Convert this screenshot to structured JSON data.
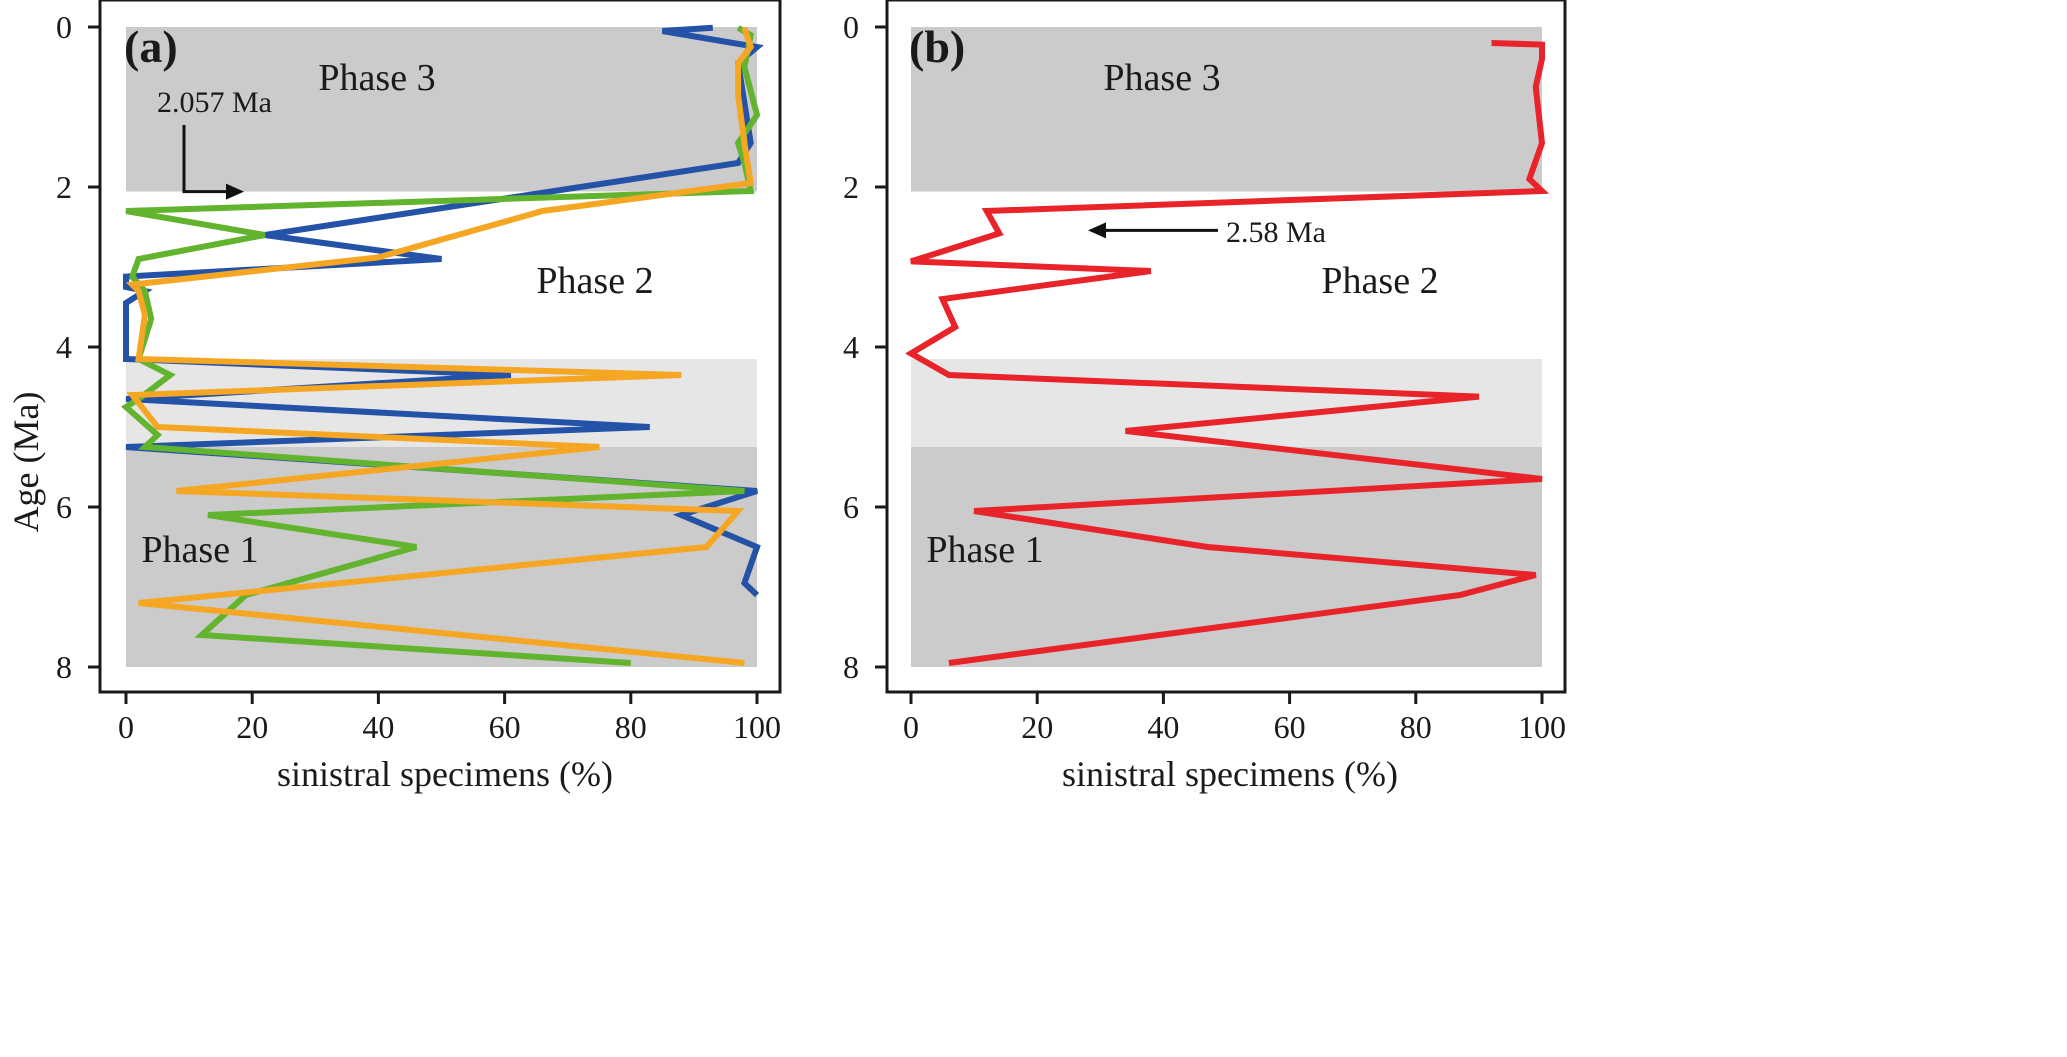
{
  "figure": {
    "ylabel": "Age (Ma)"
  },
  "chart_data": [
    {
      "type": "line",
      "panel": "(a)",
      "xlabel": "sinistral specimens (%)",
      "ylabel": "Age (Ma)",
      "xlim": [
        0,
        100
      ],
      "ylim": [
        8,
        0
      ],
      "x_ticks": [
        "0",
        "20",
        "40",
        "60",
        "80",
        "100"
      ],
      "y_ticks": [
        "0",
        "2",
        "4",
        "6",
        "8"
      ],
      "y_inverted": true,
      "bands": [
        {
          "name": "Phase 3",
          "from": 0,
          "to": 2.057,
          "color": "#cbcbcb",
          "label": "Phase 3"
        },
        {
          "name": "Phase 2",
          "from": 2.057,
          "to": 4.15,
          "color": "#ffffff",
          "label": "Phase 2"
        },
        {
          "name": "transition",
          "from": 4.15,
          "to": 5.25,
          "color": "#e6e6e6",
          "label": ""
        },
        {
          "name": "Phase 1",
          "from": 5.25,
          "to": 8.0,
          "color": "#cbcbcb",
          "label": "Phase 1"
        }
      ],
      "annotations": [
        {
          "text": "2.057 Ma",
          "age": 2.057,
          "arrow": "right"
        }
      ],
      "series": [
        {
          "name": "blue",
          "color": "#2352a6",
          "points": [
            [
              93,
              0.01
            ],
            [
              85,
              0.05
            ],
            [
              100,
              0.25
            ],
            [
              97,
              0.45
            ],
            [
              99,
              1.45
            ],
            [
              97,
              1.7
            ],
            [
              22,
              2.6
            ],
            [
              50,
              2.9
            ],
            [
              0,
              3.12
            ],
            [
              0,
              3.25
            ],
            [
              3,
              3.3
            ],
            [
              0,
              3.45
            ],
            [
              0,
              4.15
            ],
            [
              61,
              4.35
            ],
            [
              0,
              4.65
            ],
            [
              83,
              5.0
            ],
            [
              0,
              5.25
            ],
            [
              100,
              5.8
            ],
            [
              88,
              6.1
            ],
            [
              100,
              6.5
            ],
            [
              98,
              6.95
            ],
            [
              100,
              7.1
            ]
          ]
        },
        {
          "name": "green",
          "color": "#62b32e",
          "points": [
            [
              97,
              0.01
            ],
            [
              99,
              0.1
            ],
            [
              98,
              0.5
            ],
            [
              100,
              1.1
            ],
            [
              97,
              1.45
            ],
            [
              98,
              1.7
            ],
            [
              99,
              2.05
            ],
            [
              0,
              2.3
            ],
            [
              22,
              2.6
            ],
            [
              2,
              2.9
            ],
            [
              1,
              3.12
            ],
            [
              3,
              3.3
            ],
            [
              4,
              3.65
            ],
            [
              2,
              4.15
            ],
            [
              7,
              4.35
            ],
            [
              2,
              4.65
            ],
            [
              0,
              4.75
            ],
            [
              5,
              5.1
            ],
            [
              3,
              5.25
            ],
            [
              98,
              5.8
            ],
            [
              13,
              6.1
            ],
            [
              46,
              6.5
            ],
            [
              19,
              7.1
            ],
            [
              12,
              7.6
            ],
            [
              80,
              7.95
            ]
          ]
        },
        {
          "name": "orange",
          "color": "#f5a623",
          "points": [
            [
              98,
              0.01
            ],
            [
              99,
              0.25
            ],
            [
              97,
              0.45
            ],
            [
              97,
              0.85
            ],
            [
              98,
              1.45
            ],
            [
              99,
              1.95
            ],
            [
              66,
              2.3
            ],
            [
              40,
              2.88
            ],
            [
              1,
              3.22
            ],
            [
              2,
              3.3
            ],
            [
              3,
              3.6
            ],
            [
              2,
              4.15
            ],
            [
              88,
              4.35
            ],
            [
              1,
              4.6
            ],
            [
              5,
              5.0
            ],
            [
              75,
              5.25
            ],
            [
              8,
              5.8
            ],
            [
              97,
              6.05
            ],
            [
              92,
              6.5
            ],
            [
              2,
              7.2
            ],
            [
              98,
              7.95
            ]
          ]
        }
      ]
    },
    {
      "type": "line",
      "panel": "(b)",
      "xlabel": "sinistral specimens (%)",
      "ylabel": "",
      "xlim": [
        0,
        100
      ],
      "ylim": [
        8,
        0
      ],
      "x_ticks": [
        "0",
        "20",
        "40",
        "60",
        "80",
        "100"
      ],
      "y_ticks": [
        "0",
        "2",
        "4",
        "6",
        "8"
      ],
      "y_inverted": true,
      "bands": [
        {
          "name": "Phase 3",
          "from": 0,
          "to": 2.057,
          "color": "#cbcbcb",
          "label": "Phase 3"
        },
        {
          "name": "Phase 2",
          "from": 2.057,
          "to": 4.15,
          "color": "#ffffff",
          "label": "Phase 2"
        },
        {
          "name": "transition",
          "from": 4.15,
          "to": 5.25,
          "color": "#e6e6e6",
          "label": ""
        },
        {
          "name": "Phase 1",
          "from": 5.25,
          "to": 8.0,
          "color": "#cbcbcb",
          "label": "Phase 1"
        }
      ],
      "annotations": [
        {
          "text": "2.58 Ma",
          "age": 2.58,
          "arrow": "left"
        }
      ],
      "series": [
        {
          "name": "red",
          "color": "#e8242a",
          "points": [
            [
              92,
              0.2
            ],
            [
              100,
              0.22
            ],
            [
              100,
              0.4
            ],
            [
              99,
              0.75
            ],
            [
              100,
              1.45
            ],
            [
              98,
              1.9
            ],
            [
              100,
              2.05
            ],
            [
              12,
              2.3
            ],
            [
              14,
              2.58
            ],
            [
              0,
              2.93
            ],
            [
              38,
              3.05
            ],
            [
              5,
              3.4
            ],
            [
              7,
              3.75
            ],
            [
              0,
              4.08
            ],
            [
              6,
              4.35
            ],
            [
              90,
              4.62
            ],
            [
              34,
              5.05
            ],
            [
              100,
              5.65
            ],
            [
              10,
              6.05
            ],
            [
              47,
              6.5
            ],
            [
              99,
              6.85
            ],
            [
              87,
              7.1
            ],
            [
              6,
              7.95
            ]
          ]
        }
      ]
    }
  ]
}
